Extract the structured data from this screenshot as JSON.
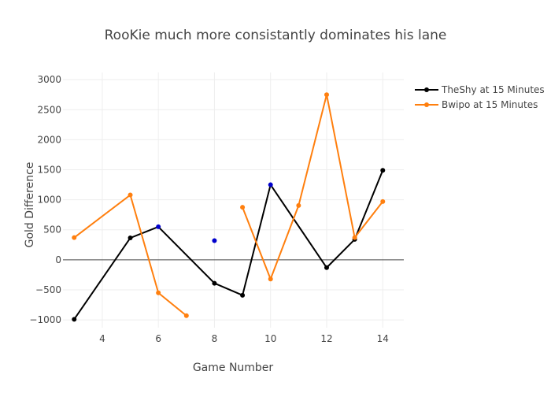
{
  "chart_data": {
    "type": "line",
    "title": "RooKie much more consistantly dominates his lane",
    "xlabel": "Game Number",
    "ylabel": "Gold Difference",
    "xlim": [
      2.6,
      14.75
    ],
    "ylim": [
      -1130,
      3120
    ],
    "x_ticks": [
      4,
      6,
      8,
      10,
      12,
      14
    ],
    "y_ticks": [
      -1000,
      -500,
      0,
      500,
      1000,
      1500,
      2000,
      2500,
      3000
    ],
    "y_tick_labels": [
      "−1000",
      "−500",
      "0",
      "500",
      "1000",
      "1500",
      "2000",
      "2500",
      "3000"
    ],
    "grid": true,
    "legend_position": "top-right",
    "series": [
      {
        "name": "TheShy at 15 Minutes",
        "color": "#000000",
        "x": [
          3,
          5,
          6,
          8,
          9,
          10,
          12,
          13,
          14
        ],
        "y": [
          -990,
          365,
          550,
          -390,
          -590,
          1250,
          -130,
          340,
          1490
        ],
        "marker_colors": [
          "#000000",
          "#000000",
          "#0000cc",
          "#000000",
          "#000000",
          "#0000cc",
          "#000000",
          "#000000",
          "#000000"
        ]
      },
      {
        "name": "Bwipo at 15 Minutes",
        "color": "#ff7f0e",
        "x": [
          3,
          5,
          6,
          7,
          8,
          9,
          10,
          11,
          12,
          13,
          14
        ],
        "y": [
          370,
          1080,
          -550,
          -930,
          null,
          875,
          -320,
          905,
          2750,
          370,
          970
        ],
        "marker_colors": [
          "#ff7f0e",
          "#ff7f0e",
          "#ff7f0e",
          "#ff7f0e",
          "#ff7f0e",
          "#ff7f0e",
          "#ff7f0e",
          "#ff7f0e",
          "#ff7f0e",
          "#ff7f0e",
          "#ff7f0e"
        ]
      }
    ],
    "extra_markers": [
      {
        "x": 8,
        "y": 320,
        "color": "#0000cc"
      }
    ]
  }
}
